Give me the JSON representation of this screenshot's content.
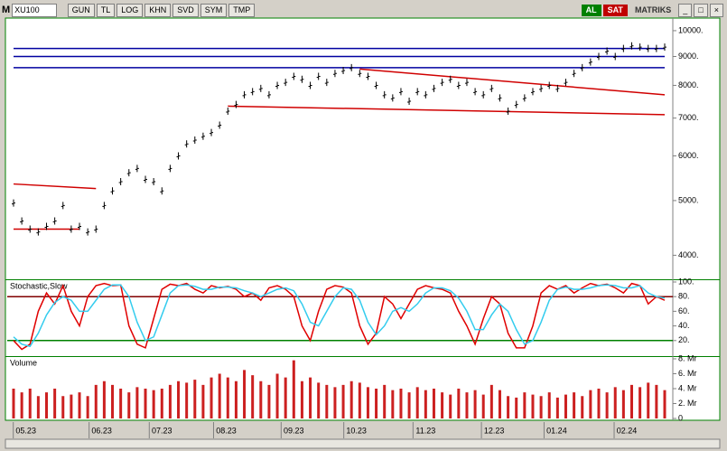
{
  "toolbar": {
    "symbol_prefix": "M",
    "symbol": "XU100",
    "buttons": [
      "GUN",
      "TL",
      "LOG",
      "KHN",
      "SVD",
      "SYM",
      "TMP"
    ],
    "buy": "AL",
    "sell": "SAT",
    "brand": "MATRIKS"
  },
  "chart_data": [
    {
      "type": "tick",
      "log_scale": true,
      "color": "#000000",
      "xlim": [
        0,
        79
      ],
      "ylim": [
        3640,
        10450
      ],
      "yticks": [
        {
          "value": 4000,
          "label": "4000."
        },
        {
          "value": 5000,
          "label": "5000."
        },
        {
          "value": 6000,
          "label": "6000."
        },
        {
          "value": 7000,
          "label": "7000."
        },
        {
          "value": 8000,
          "label": "8000."
        },
        {
          "value": 9000,
          "label": "9000."
        },
        {
          "value": 10000,
          "label": "10000."
        }
      ],
      "values": [
        4950,
        4600,
        4450,
        4400,
        4500,
        4600,
        4900,
        4450,
        4500,
        4400,
        4450,
        4900,
        5200,
        5400,
        5600,
        5700,
        5450,
        5400,
        5200,
        5700,
        6000,
        6300,
        6400,
        6500,
        6600,
        6800,
        7200,
        7400,
        7700,
        7800,
        7900,
        7700,
        8000,
        8100,
        8300,
        8200,
        8000,
        8300,
        8100,
        8400,
        8500,
        8600,
        8400,
        8300,
        8000,
        7700,
        7600,
        7800,
        7500,
        7800,
        7700,
        7900,
        8100,
        8200,
        8000,
        8100,
        7800,
        7700,
        7900,
        7600,
        7200,
        7400,
        7600,
        7800,
        7900,
        8000,
        7900,
        8100,
        8400,
        8600,
        8800,
        9000,
        9200,
        9000,
        9300,
        9400,
        9350,
        9300,
        9300,
        9350
      ],
      "lines": [
        {
          "color": "#0000a0",
          "points": [
            [
              0,
              9300
            ],
            [
              79,
              9300
            ]
          ]
        },
        {
          "color": "#0000a0",
          "points": [
            [
              0,
              9000
            ],
            [
              79,
              9000
            ]
          ]
        },
        {
          "color": "#0000a0",
          "points": [
            [
              0,
              8600
            ],
            [
              79,
              8600
            ]
          ]
        },
        {
          "color": "#d00000",
          "points": [
            [
              0,
              5350
            ],
            [
              10,
              5250
            ]
          ]
        },
        {
          "color": "#d00000",
          "points": [
            [
              0,
              4450
            ],
            [
              8,
              4450
            ]
          ]
        },
        {
          "color": "#d00000",
          "points": [
            [
              26,
              7350
            ],
            [
              79,
              7100
            ]
          ]
        },
        {
          "color": "#d00000",
          "points": [
            [
              42,
              8550
            ],
            [
              79,
              7700
            ]
          ]
        }
      ]
    },
    {
      "type": "line",
      "title": "Stochastic,Slow",
      "xlim": [
        0,
        79
      ],
      "ylim": [
        0,
        100
      ],
      "yticks": [
        {
          "value": 20,
          "label": "20."
        },
        {
          "value": 40,
          "label": "40."
        },
        {
          "value": 60,
          "label": "60."
        },
        {
          "value": 80,
          "label": "80."
        },
        {
          "value": 100,
          "label": "100."
        }
      ],
      "levels": [
        {
          "value": 80,
          "color": "#800000"
        },
        {
          "value": 20,
          "color": "#008000"
        }
      ],
      "series": [
        {
          "color": "#e00000",
          "values": [
            20,
            8,
            15,
            60,
            85,
            70,
            95,
            60,
            40,
            80,
            95,
            98,
            95,
            96,
            40,
            15,
            10,
            50,
            90,
            97,
            95,
            98,
            90,
            85,
            95,
            92,
            94,
            90,
            80,
            85,
            75,
            92,
            95,
            90,
            80,
            40,
            20,
            60,
            90,
            95,
            93,
            85,
            40,
            15,
            30,
            80,
            70,
            50,
            70,
            90,
            95,
            92,
            90,
            85,
            60,
            40,
            15,
            50,
            80,
            70,
            30,
            10,
            10,
            40,
            85,
            95,
            90,
            95,
            85,
            92,
            98,
            95,
            97,
            92,
            85,
            98,
            95,
            70,
            80,
            75
          ]
        },
        {
          "color": "#33ccee",
          "values": [
            25,
            15,
            12,
            30,
            55,
            72,
            80,
            75,
            60,
            60,
            75,
            90,
            96,
            96,
            80,
            45,
            20,
            25,
            55,
            85,
            95,
            96,
            94,
            90,
            90,
            93,
            93,
            92,
            88,
            85,
            80,
            85,
            90,
            92,
            88,
            70,
            45,
            40,
            60,
            80,
            92,
            90,
            75,
            45,
            28,
            40,
            60,
            65,
            60,
            70,
            85,
            92,
            92,
            88,
            78,
            60,
            35,
            35,
            55,
            70,
            60,
            35,
            15,
            20,
            45,
            75,
            90,
            93,
            90,
            90,
            92,
            95,
            96,
            95,
            92,
            92,
            95,
            85,
            80,
            78
          ]
        }
      ]
    },
    {
      "type": "bar",
      "title": "Volume",
      "color": "#cc2020",
      "xlim": [
        0,
        79
      ],
      "ylim": [
        0,
        8
      ],
      "yticks": [
        0,
        {
          "value": 2,
          "label": "2. Mr"
        },
        {
          "value": 4,
          "label": "4. Mr"
        },
        {
          "value": 6,
          "label": "6. Mr"
        },
        {
          "value": 8,
          "label": "8. Mr"
        }
      ],
      "xticks": [
        {
          "value": 1.5,
          "label": "05.23"
        },
        {
          "value": 10.7,
          "label": "06.23"
        },
        {
          "value": 18,
          "label": "07.23"
        },
        {
          "value": 25.8,
          "label": "08.23"
        },
        {
          "value": 34,
          "label": "09.23"
        },
        {
          "value": 41.6,
          "label": "10.23"
        },
        {
          "value": 50,
          "label": "11.23"
        },
        {
          "value": 58.3,
          "label": "12.23"
        },
        {
          "value": 65.9,
          "label": "01.24"
        },
        {
          "value": 74.4,
          "label": "02.24"
        }
      ],
      "values": [
        4,
        3.5,
        4,
        3,
        3.5,
        4,
        3,
        3.2,
        3.5,
        3,
        4.5,
        5,
        4.5,
        4,
        3.5,
        4.2,
        4,
        3.8,
        4,
        4.5,
        5,
        4.8,
        5.2,
        4.5,
        5.5,
        6,
        5.5,
        5,
        6.5,
        5.8,
        5,
        4.5,
        6,
        5.5,
        7.8,
        5,
        5.5,
        4.8,
        4.5,
        4.2,
        4.5,
        5,
        4.8,
        4.2,
        4,
        4.5,
        3.8,
        4,
        3.5,
        4.2,
        3.8,
        4,
        3.5,
        3.2,
        4,
        3.5,
        3.8,
        3.2,
        4.5,
        3.8,
        3,
        2.8,
        3.5,
        3.2,
        3,
        3.5,
        2.8,
        3.2,
        3.5,
        3,
        3.8,
        4,
        3.5,
        4.2,
        3.8,
        4.5,
        4.2,
        4.8,
        4.5,
        3.8
      ]
    }
  ]
}
